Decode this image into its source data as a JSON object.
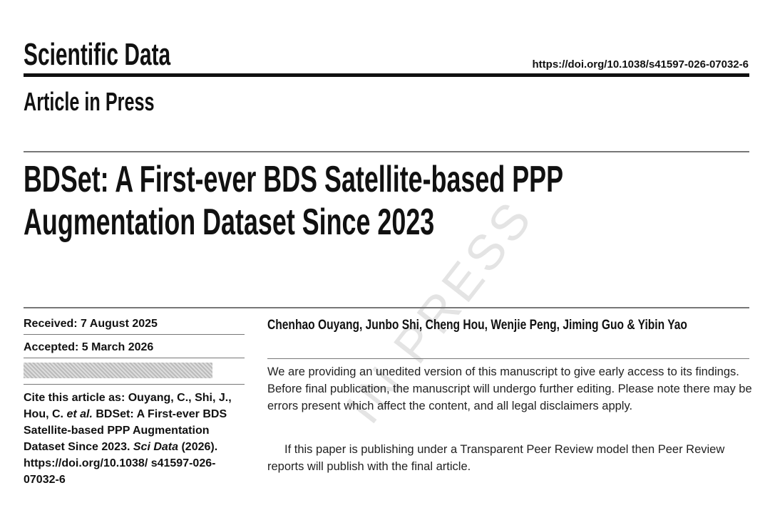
{
  "header": {
    "journal": "Scientific Data",
    "doi": "https://doi.org/10.1038/s41597-026-07032-6",
    "status": "Article in Press"
  },
  "title": {
    "line1": "BDSet: A First-ever BDS Satellite-based PPP",
    "line2": "Augmentation Dataset Since 2023"
  },
  "sidebar": {
    "received": "Received: 7 August 2025",
    "accepted": "Accepted: 5 March 2026",
    "cite": {
      "prefix": "Cite this article as: Ouyang, C., Shi, J., Hou, C.",
      "etal": "et al.",
      "middle": "BDSet: A First-ever BDS Satellite-based PPP Augmentation Dataset Since 2023.",
      "journal": "Sci Data",
      "suffix": "(2026). https://doi.org/10.1038/ s41597-026-07032-6"
    }
  },
  "authors": "Chenhao Ouyang, Junbo Shi, Cheng Hou, Wenjie Peng, Jiming Guo & Yibin Yao",
  "body": {
    "paragraph1": "We are providing an unedited version of this manuscript to give early access to its findings. Before final publication, the manuscript will undergo further editing. Please note there may be errors present which affect the content, and all legal disclaimers apply.",
    "paragraph2": "If this paper is publishing under a Transparent Peer Review model then Peer Review reports will publish with the final article."
  },
  "watermark": "IN PRESS"
}
